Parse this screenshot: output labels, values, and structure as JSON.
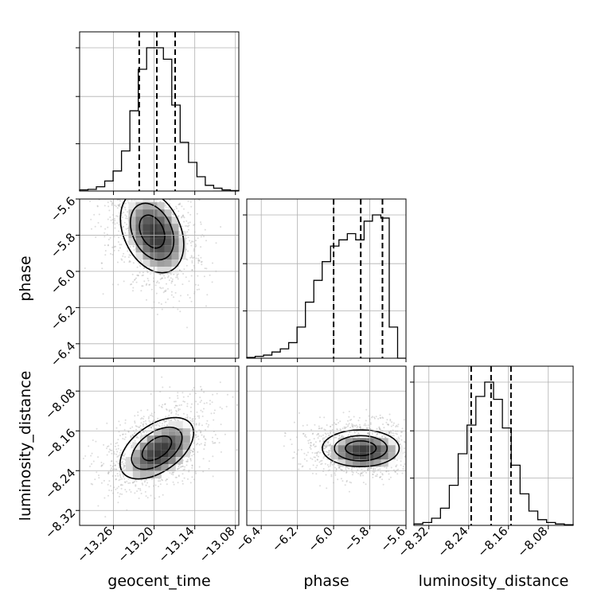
{
  "chart_data": {
    "type": "corner",
    "parameters": [
      {
        "name": "geocent_time",
        "label": "geocent_time",
        "range": [
          -13.31,
          -13.075
        ],
        "ticks": [
          -13.26,
          -13.2,
          -13.14,
          -13.08
        ],
        "tick_labels": [
          "−13.26",
          "−13.20",
          "−13.14",
          "−13.08"
        ],
        "quantiles": [
          -13.222,
          -13.196,
          -13.169
        ],
        "hist_edges": [
          -13.31,
          -13.075
        ],
        "hist_counts": [
          0.008,
          0.012,
          0.03,
          0.07,
          0.14,
          0.28,
          0.56,
          0.85,
          1.0,
          1.0,
          0.92,
          0.6,
          0.34,
          0.2,
          0.1,
          0.04,
          0.02,
          0.008,
          0.003
        ]
      },
      {
        "name": "phase",
        "label": "phase",
        "range": [
          -6.48,
          -5.6
        ],
        "ticks": [
          -6.4,
          -6.2,
          -6.0,
          -5.8,
          -5.6
        ],
        "tick_labels": [
          "−6.4",
          "−6.2",
          "−6.0",
          "−5.8",
          "−5.6"
        ],
        "quantiles": [
          -6.0,
          -5.85,
          -5.73
        ],
        "hist_edges": [
          -6.48,
          -5.6
        ],
        "hist_counts": [
          0.005,
          0.012,
          0.02,
          0.04,
          0.06,
          0.1,
          0.2,
          0.36,
          0.5,
          0.62,
          0.72,
          0.76,
          0.8,
          0.76,
          0.88,
          0.92,
          0.9,
          0.2,
          0.0
        ]
      },
      {
        "name": "luminosity_distance",
        "label": "luminosity_distance",
        "range": [
          -8.35,
          -8.03
        ],
        "ticks": [
          -8.32,
          -8.24,
          -8.16,
          -8.08
        ],
        "tick_labels": [
          "−8.32",
          "−8.24",
          "−8.16",
          "−8.08"
        ],
        "quantiles": [
          -8.235,
          -8.195,
          -8.155
        ],
        "hist_edges": [
          -8.35,
          -8.03
        ],
        "hist_counts": [
          0.01,
          0.02,
          0.05,
          0.12,
          0.28,
          0.5,
          0.7,
          0.9,
          1.0,
          0.88,
          0.68,
          0.42,
          0.22,
          0.1,
          0.04,
          0.02,
          0.01,
          0.005
        ]
      }
    ],
    "pairs": [
      {
        "x": "geocent_time",
        "y": "phase",
        "center": [
          -13.203,
          -5.78
        ],
        "mode": [
          -13.205,
          -5.73
        ]
      },
      {
        "x": "geocent_time",
        "y": "luminosity_distance",
        "center": [
          -13.196,
          -8.195
        ]
      },
      {
        "x": "phase",
        "y": "luminosity_distance",
        "center": [
          -5.85,
          -8.195
        ],
        "mode": [
          -5.73,
          -8.2
        ]
      }
    ],
    "grid": true,
    "ylim_phase": [
      -6.48,
      -5.6
    ],
    "ylim_luminosity_distance": [
      -8.35,
      -8.03
    ]
  }
}
